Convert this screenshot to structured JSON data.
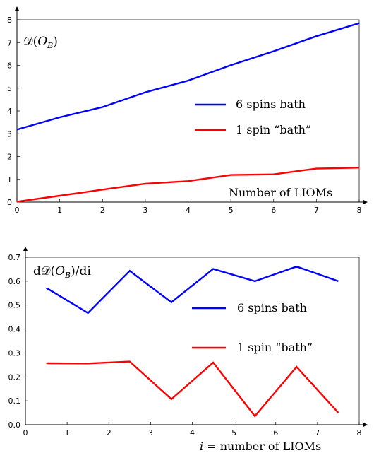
{
  "chart_data": [
    {
      "type": "line",
      "title": "",
      "ylabel": "𝒟(O_B)",
      "ylabel_parts": [
        "𝒟(",
        "O",
        "B",
        ")"
      ],
      "xlabel": "Number of LIOMs",
      "xlim": [
        0,
        8
      ],
      "ylim": [
        0,
        8
      ],
      "xticks": [
        0,
        1,
        2,
        3,
        4,
        5,
        6,
        7,
        8
      ],
      "yticks": [
        0,
        1,
        2,
        3,
        4,
        5,
        6,
        7,
        8
      ],
      "grid": false,
      "legend_position": "center-right",
      "series": [
        {
          "name": "6 spins bath",
          "color": "#0000ff",
          "x": [
            0,
            1,
            2,
            3,
            4,
            5,
            6,
            7,
            8
          ],
          "values": [
            3.18,
            3.72,
            4.17,
            4.82,
            5.33,
            6.01,
            6.62,
            7.28,
            7.85
          ]
        },
        {
          "name": "1 spin “bath”",
          "color": "#ff0000",
          "x": [
            0,
            1,
            2,
            3,
            4,
            5,
            6,
            7,
            8
          ],
          "values": [
            0.02,
            0.28,
            0.55,
            0.81,
            0.92,
            1.19,
            1.22,
            1.47,
            1.51
          ]
        }
      ]
    },
    {
      "type": "line",
      "title": "",
      "ylabel": "d𝒟(O_B)/di",
      "ylabel_parts": [
        "d𝒟(",
        "O",
        "B",
        ")/di"
      ],
      "xlabel": "i = number of LIOMs",
      "xlabel_parts": [
        "i",
        " = number of LIOMs"
      ],
      "xlim": [
        0,
        8
      ],
      "ylim": [
        0,
        0.7
      ],
      "xticks": [
        0,
        1,
        2,
        3,
        4,
        5,
        6,
        7,
        8
      ],
      "yticks": [
        0,
        0.1,
        0.2,
        0.3,
        0.4,
        0.5,
        0.6,
        0.7
      ],
      "grid": false,
      "legend_position": "center-right",
      "series": [
        {
          "name": "6 spins bath",
          "color": "#0000ff",
          "x": [
            0.5,
            1.5,
            2.5,
            3.5,
            4.5,
            5.5,
            6.5,
            7.5
          ],
          "values": [
            0.572,
            0.467,
            0.643,
            0.512,
            0.651,
            0.6,
            0.661,
            0.6
          ]
        },
        {
          "name": "1 spin “bath”",
          "color": "#ff0000",
          "x": [
            0.5,
            1.5,
            2.5,
            3.5,
            4.5,
            5.5,
            6.5,
            7.5
          ],
          "values": [
            0.257,
            0.256,
            0.264,
            0.107,
            0.26,
            0.036,
            0.242,
            0.05
          ]
        }
      ]
    }
  ]
}
